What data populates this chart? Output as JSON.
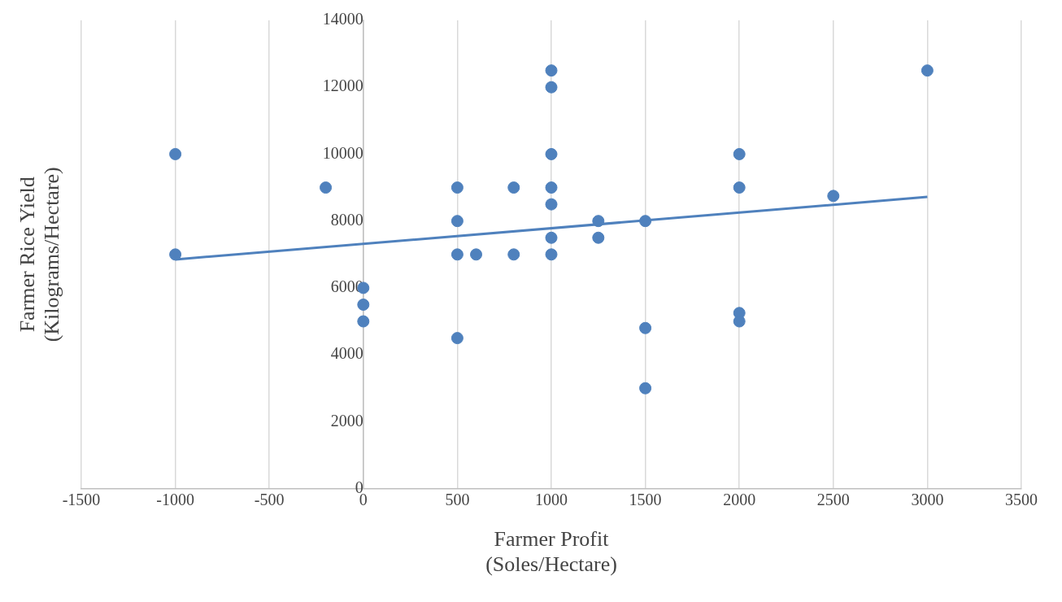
{
  "chart_data": {
    "type": "scatter",
    "xlabel": "Farmer Profit\n(Soles/Hectare)",
    "ylabel": "Farmer Rice Yield\n(Kilograms/Hectare)",
    "xlim": [
      -1500,
      3500
    ],
    "xticks": [
      -1500,
      -1000,
      -500,
      0,
      500,
      1000,
      1500,
      2000,
      2500,
      3000,
      3500
    ],
    "ylim": [
      0,
      14000
    ],
    "yticks": [
      0,
      2000,
      4000,
      6000,
      8000,
      10000,
      12000,
      14000
    ],
    "grid": "x",
    "legend": false,
    "series": [
      {
        "marker": "circle",
        "color": "#4f81bd",
        "x": [
          -1000,
          -1000,
          -200,
          0,
          0,
          0,
          500,
          500,
          500,
          500,
          600,
          800,
          800,
          1000,
          1000,
          1000,
          1000,
          1000,
          1000,
          1000,
          1250,
          1250,
          1500,
          1500,
          1500,
          2000,
          2000,
          2000,
          2000,
          2500,
          3000
        ],
        "values": [
          10000,
          7000,
          9000,
          6000,
          5500,
          5000,
          9000,
          8000,
          7000,
          4500,
          7000,
          9000,
          7000,
          12500,
          12000,
          10000,
          9000,
          8500,
          7500,
          7000,
          8000,
          7500,
          8000,
          4800,
          3000,
          10000,
          9000,
          5250,
          5000,
          8750,
          12500
        ]
      },
      {
        "type": "line",
        "marker": "none",
        "line_style": "solid",
        "color": "#4f81bd",
        "x": [
          -1000,
          3000
        ],
        "values": [
          6850,
          8720
        ]
      }
    ]
  }
}
